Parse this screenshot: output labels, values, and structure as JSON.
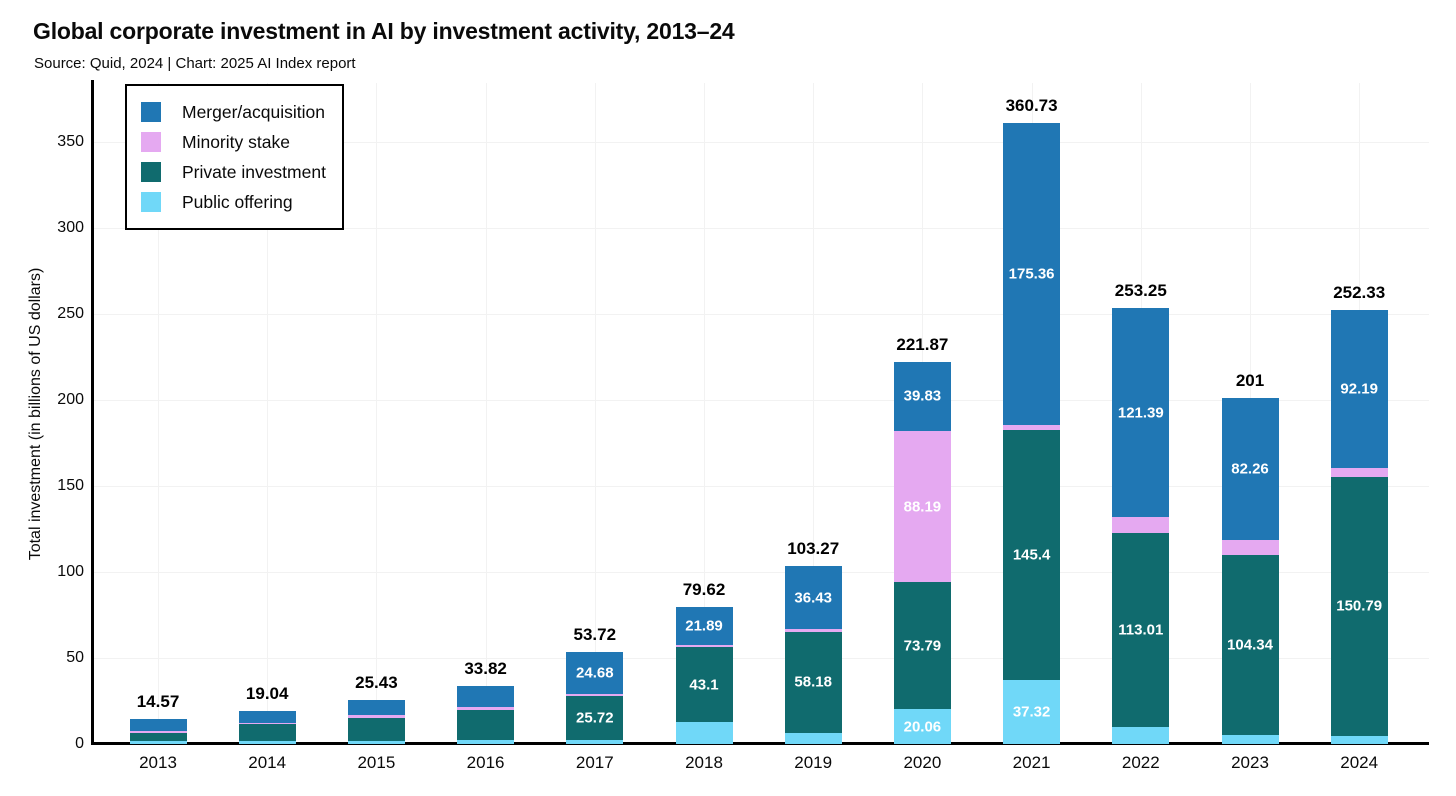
{
  "chart_data": {
    "type": "bar",
    "variant": "stacked-vertical",
    "title": "Global corporate investment in AI by investment activity, 2013–24",
    "subtitle": "Source: Quid, 2024 | Chart: 2025 AI Index report",
    "ylabel": "Total investment (in billions of US dollars)",
    "ylim": [
      0,
      384
    ],
    "yticks": [
      0,
      50,
      100,
      150,
      200,
      250,
      300,
      350
    ],
    "grid": true,
    "legend_position": "top-left-inside",
    "stack_order_bottom_to_top": [
      "public_offering",
      "private_investment",
      "minority_stake",
      "merger_acquisition"
    ],
    "series_colors": {
      "merger_acquisition": "#2077b4",
      "minority_stake": "#e5a9f1",
      "private_investment": "#106b6e",
      "public_offering": "#70d8f8"
    },
    "legend": [
      {
        "key": "merger_acquisition",
        "label": "Merger/acquisition"
      },
      {
        "key": "minority_stake",
        "label": "Minority stake"
      },
      {
        "key": "private_investment",
        "label": "Private investment"
      },
      {
        "key": "public_offering",
        "label": "Public offering"
      }
    ],
    "categories": [
      "2013",
      "2014",
      "2015",
      "2016",
      "2017",
      "2018",
      "2019",
      "2020",
      "2021",
      "2022",
      "2023",
      "2024"
    ],
    "bars": [
      {
        "year": "2013",
        "total_label": "14.57",
        "segments": {
          "merger_acquisition": {
            "value": 6.9,
            "label": null
          },
          "minority_stake": {
            "value": 1.3,
            "label": null
          },
          "private_investment": {
            "value": 4.5,
            "label": null
          },
          "public_offering": {
            "value": 1.87,
            "label": null
          }
        }
      },
      {
        "year": "2014",
        "total_label": "19.04",
        "segments": {
          "merger_acquisition": {
            "value": 6.9,
            "label": null
          },
          "minority_stake": {
            "value": 0.4,
            "label": null
          },
          "private_investment": {
            "value": 9.9,
            "label": null
          },
          "public_offering": {
            "value": 1.84,
            "label": null
          }
        }
      },
      {
        "year": "2015",
        "total_label": "25.43",
        "segments": {
          "merger_acquisition": {
            "value": 8.8,
            "label": null
          },
          "minority_stake": {
            "value": 1.4,
            "label": null
          },
          "private_investment": {
            "value": 13.3,
            "label": null
          },
          "public_offering": {
            "value": 1.93,
            "label": null
          }
        }
      },
      {
        "year": "2016",
        "total_label": "33.82",
        "segments": {
          "merger_acquisition": {
            "value": 12.5,
            "label": null
          },
          "minority_stake": {
            "value": 1.6,
            "label": null
          },
          "private_investment": {
            "value": 17.6,
            "label": null
          },
          "public_offering": {
            "value": 2.12,
            "label": null
          }
        }
      },
      {
        "year": "2017",
        "total_label": "53.72",
        "segments": {
          "merger_acquisition": {
            "value": 24.68,
            "label": "24.68"
          },
          "minority_stake": {
            "value": 1.0,
            "label": null
          },
          "private_investment": {
            "value": 25.72,
            "label": "25.72"
          },
          "public_offering": {
            "value": 2.32,
            "label": null
          }
        }
      },
      {
        "year": "2018",
        "total_label": "79.62",
        "segments": {
          "merger_acquisition": {
            "value": 21.89,
            "label": "21.89"
          },
          "minority_stake": {
            "value": 1.63,
            "label": null
          },
          "private_investment": {
            "value": 43.1,
            "label": "43.1"
          },
          "public_offering": {
            "value": 13.0,
            "label": null
          }
        }
      },
      {
        "year": "2019",
        "total_label": "103.27",
        "segments": {
          "merger_acquisition": {
            "value": 36.43,
            "label": "36.43"
          },
          "minority_stake": {
            "value": 2.0,
            "label": null
          },
          "private_investment": {
            "value": 58.18,
            "label": "58.18"
          },
          "public_offering": {
            "value": 6.66,
            "label": null
          }
        }
      },
      {
        "year": "2020",
        "total_label": "221.87",
        "segments": {
          "merger_acquisition": {
            "value": 39.83,
            "label": "39.83"
          },
          "minority_stake": {
            "value": 88.19,
            "label": "88.19"
          },
          "private_investment": {
            "value": 73.79,
            "label": "73.79"
          },
          "public_offering": {
            "value": 20.06,
            "label": "20.06"
          }
        }
      },
      {
        "year": "2021",
        "total_label": "360.73",
        "segments": {
          "merger_acquisition": {
            "value": 175.36,
            "label": "175.36"
          },
          "minority_stake": {
            "value": 2.65,
            "label": null
          },
          "private_investment": {
            "value": 145.4,
            "label": "145.4"
          },
          "public_offering": {
            "value": 37.32,
            "label": "37.32"
          }
        }
      },
      {
        "year": "2022",
        "total_label": "253.25",
        "segments": {
          "merger_acquisition": {
            "value": 121.39,
            "label": "121.39"
          },
          "minority_stake": {
            "value": 9.0,
            "label": null
          },
          "private_investment": {
            "value": 113.01,
            "label": "113.01"
          },
          "public_offering": {
            "value": 9.85,
            "label": null
          }
        }
      },
      {
        "year": "2023",
        "total_label": "201",
        "segments": {
          "merger_acquisition": {
            "value": 82.26,
            "label": "82.26"
          },
          "minority_stake": {
            "value": 9.0,
            "label": null
          },
          "private_investment": {
            "value": 104.34,
            "label": "104.34"
          },
          "public_offering": {
            "value": 5.4,
            "label": null
          }
        }
      },
      {
        "year": "2024",
        "total_label": "252.33",
        "segments": {
          "merger_acquisition": {
            "value": 92.19,
            "label": "92.19"
          },
          "minority_stake": {
            "value": 4.75,
            "label": null
          },
          "private_investment": {
            "value": 150.79,
            "label": "150.79"
          },
          "public_offering": {
            "value": 4.6,
            "label": null
          }
        }
      }
    ]
  }
}
